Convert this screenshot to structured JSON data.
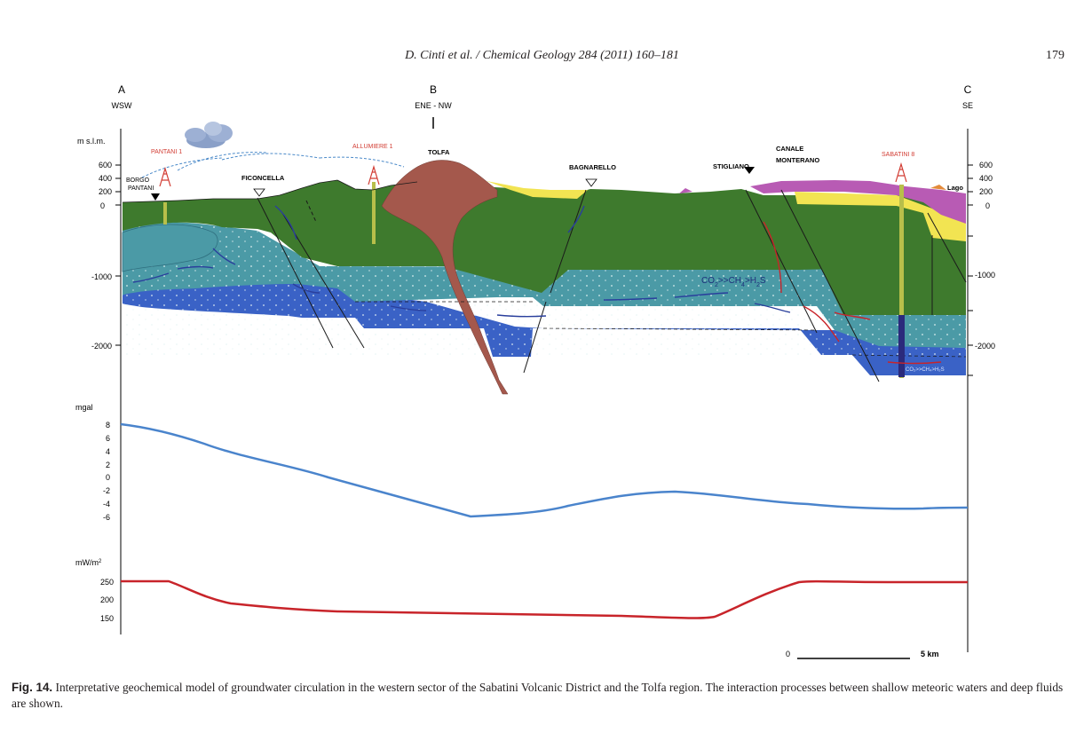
{
  "header": {
    "running_head": "D. Cinti et al. / Chemical Geology 284 (2011) 160–181",
    "page_number": "179"
  },
  "figure": {
    "section_points": [
      {
        "letter": "A",
        "direction": "WSW"
      },
      {
        "letter": "B",
        "direction": "ENE - NW"
      },
      {
        "letter": "C",
        "direction": "SE"
      }
    ],
    "elevation_unit": "m s.l.m.",
    "elevation_ticks_left": [
      "600",
      "400",
      "200",
      "0",
      "-1000",
      "-2000"
    ],
    "elevation_ticks_right": [
      "600",
      "400",
      "200",
      "0",
      "-1000",
      "-2000"
    ],
    "localities": {
      "borgo_pantani": "BORGO PANTANI",
      "pantani_1": "PANTANI 1",
      "ficoncella": "FICONCELLA",
      "allumiere_1": "ALLUMIERE 1",
      "tolfa": "TOLFA",
      "bagnarello": "BAGNARELLO",
      "stigliano": "STIGLIANO",
      "canale_monterano": "CANALE MONTERANO",
      "sabatini_8": "SABATINI 8",
      "lago": "Lago"
    },
    "gas_label": {
      "a": "CO",
      "a_sub": "2",
      "b": ">>CH",
      "b_sub": "4",
      "c": ">H",
      "c_sub": "2",
      "d": "S"
    },
    "gas_label_small": "CO₂>>CH₄>H₂S",
    "colors": {
      "green": "#3e7a2d",
      "teal": "#4b9aa6",
      "blue": "#3a62c6",
      "brown": "#a4584c",
      "yellow": "#f2e452",
      "purple": "#b85bb4",
      "gravity_line": "#4a84cc",
      "heatflow_line": "#c8242a",
      "well_red": "#d23c33"
    },
    "gravity": {
      "unit": "mgal",
      "ticks": [
        "8",
        "6",
        "4",
        "2",
        "0",
        "-2",
        "-4",
        "-6"
      ]
    },
    "heat_flow": {
      "unit": "mW/m",
      "unit_sup": "2",
      "ticks": [
        "250",
        "200",
        "150"
      ]
    },
    "scale_bar": {
      "start": "0",
      "end": "5 km"
    }
  },
  "caption": {
    "label": "Fig. 14.",
    "text": "Interpretative geochemical model of groundwater circulation in the western sector of the Sabatini Volcanic District and the Tolfa region. The interaction processes between shallow meteoric waters and deep fluids are shown."
  }
}
